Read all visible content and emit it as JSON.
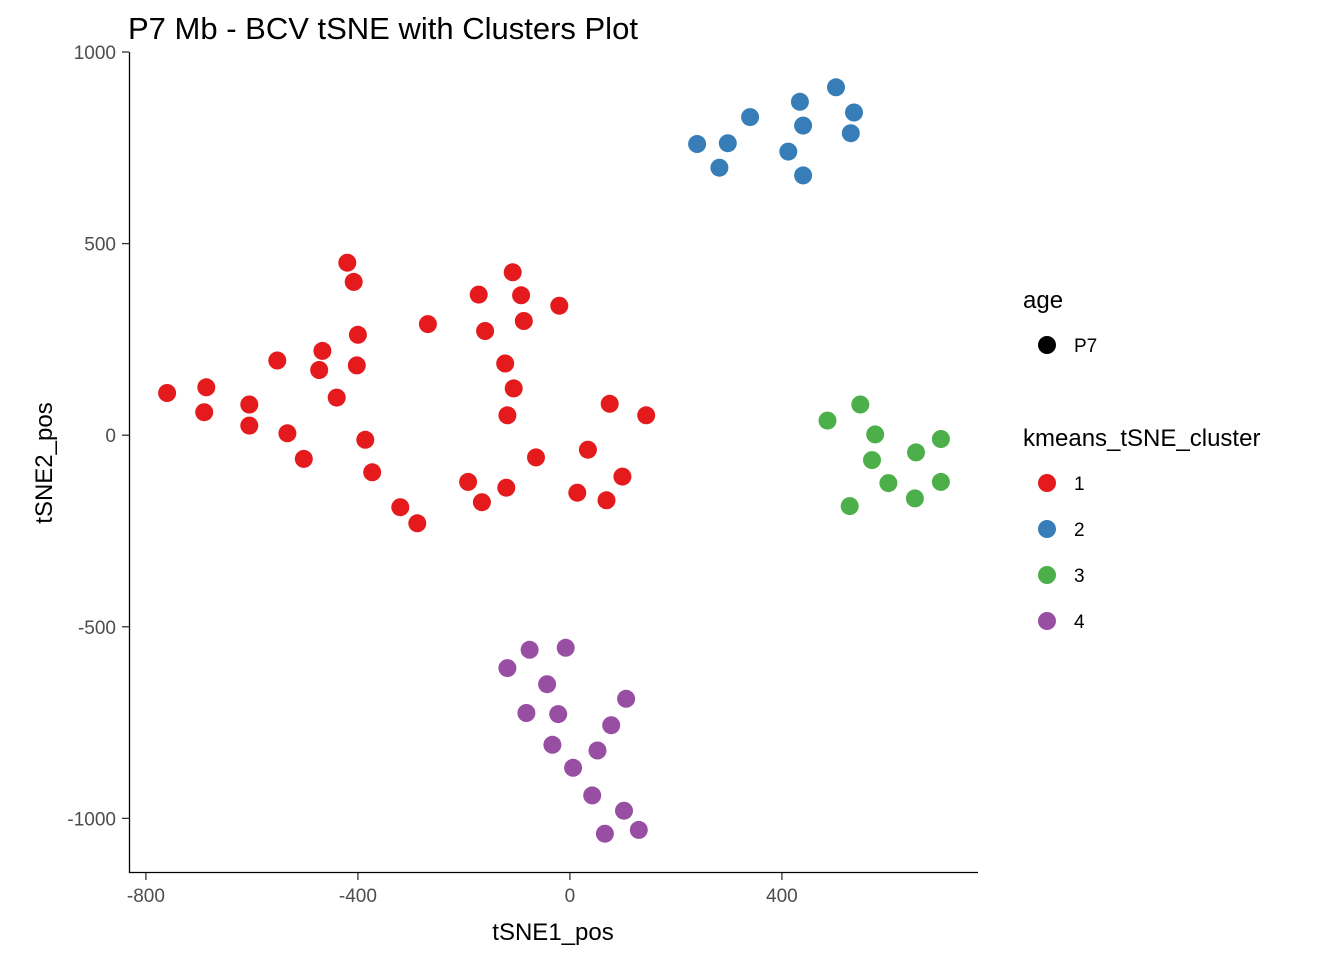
{
  "chart_data": {
    "type": "scatter",
    "title": "P7 Mb - BCV tSNE with Clusters Plot",
    "xlabel": "tSNE1_pos",
    "ylabel": "tSNE2_pos",
    "xlim": [
      -830,
      770
    ],
    "ylim": [
      -1140,
      1000
    ],
    "xticks": [
      -800,
      -400,
      0,
      400
    ],
    "xtick_labels": [
      "-800",
      "-400",
      "0",
      "400"
    ],
    "yticks": [
      1000,
      500,
      0,
      -500,
      -1000
    ],
    "ytick_labels": [
      "1000",
      "500",
      "0",
      "-500",
      "-1000"
    ],
    "grid": false,
    "legend_position": "right",
    "legend": {
      "shape_title": "age",
      "shape_entries": [
        {
          "label": "P7",
          "color": "#000000"
        }
      ],
      "color_title": "kmeans_tSNE_cluster",
      "color_entries": [
        {
          "label": "1",
          "color": "#E41A1C"
        },
        {
          "label": "2",
          "color": "#377EB8"
        },
        {
          "label": "3",
          "color": "#4DAF4A"
        },
        {
          "label": "4",
          "color": "#984EA3"
        }
      ]
    },
    "series": [
      {
        "name": "1",
        "color": "#E41A1C",
        "points": [
          [
            -760,
            110
          ],
          [
            -686,
            125
          ],
          [
            -690,
            60
          ],
          [
            -605,
            80
          ],
          [
            -605,
            25
          ],
          [
            -552,
            195
          ],
          [
            -533,
            5
          ],
          [
            -502,
            -62
          ],
          [
            -467,
            220
          ],
          [
            -473,
            170
          ],
          [
            -440,
            98
          ],
          [
            -420,
            450
          ],
          [
            -408,
            400
          ],
          [
            -400,
            262
          ],
          [
            -402,
            182
          ],
          [
            -386,
            -12
          ],
          [
            -373,
            -97
          ],
          [
            -320,
            -188
          ],
          [
            -288,
            -230
          ],
          [
            -268,
            290
          ],
          [
            -192,
            -122
          ],
          [
            -172,
            367
          ],
          [
            -166,
            -175
          ],
          [
            -160,
            272
          ],
          [
            -122,
            187
          ],
          [
            -118,
            52
          ],
          [
            -120,
            -137
          ],
          [
            -108,
            425
          ],
          [
            -106,
            122
          ],
          [
            -92,
            365
          ],
          [
            -87,
            298
          ],
          [
            -64,
            -58
          ],
          [
            -20,
            338
          ],
          [
            14,
            -150
          ],
          [
            34,
            -38
          ],
          [
            69,
            -170
          ],
          [
            75,
            82
          ],
          [
            99,
            -108
          ],
          [
            144,
            52
          ]
        ]
      },
      {
        "name": "2",
        "color": "#377EB8",
        "points": [
          [
            240,
            760
          ],
          [
            282,
            698
          ],
          [
            298,
            762
          ],
          [
            340,
            830
          ],
          [
            412,
            740
          ],
          [
            434,
            870
          ],
          [
            440,
            808
          ],
          [
            440,
            678
          ],
          [
            502,
            908
          ],
          [
            530,
            788
          ],
          [
            536,
            842
          ]
        ]
      },
      {
        "name": "3",
        "color": "#4DAF4A",
        "points": [
          [
            486,
            38
          ],
          [
            548,
            80
          ],
          [
            528,
            -185
          ],
          [
            570,
            -65
          ],
          [
            576,
            2
          ],
          [
            601,
            -125
          ],
          [
            651,
            -165
          ],
          [
            653,
            -45
          ],
          [
            700,
            -10
          ],
          [
            700,
            -122
          ]
        ]
      },
      {
        "name": "4",
        "color": "#984EA3",
        "points": [
          [
            -118,
            -608
          ],
          [
            -82,
            -725
          ],
          [
            -76,
            -560
          ],
          [
            -43,
            -650
          ],
          [
            -33,
            -808
          ],
          [
            -22,
            -728
          ],
          [
            -8,
            -555
          ],
          [
            6,
            -868
          ],
          [
            42,
            -940
          ],
          [
            52,
            -823
          ],
          [
            66,
            -1040
          ],
          [
            78,
            -757
          ],
          [
            102,
            -980
          ],
          [
            106,
            -688
          ],
          [
            130,
            -1030
          ]
        ]
      }
    ]
  }
}
